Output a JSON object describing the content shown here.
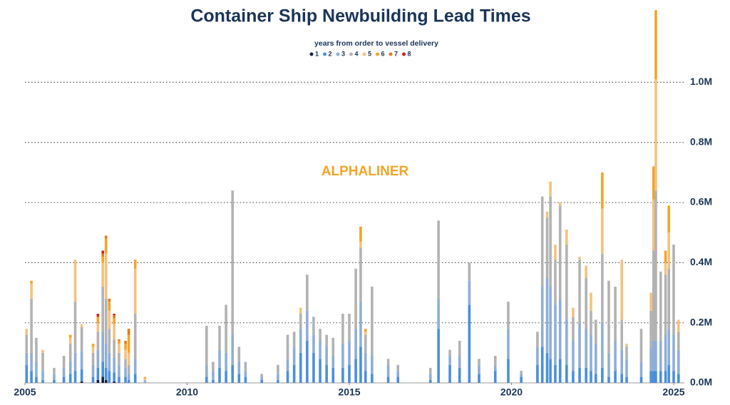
{
  "chart_data": {
    "type": "stacked-bar",
    "title": "Container Ship Newbuilding Lead Times",
    "subtitle": "years from order to vessel delivery",
    "watermark": "ALPHALINER",
    "x": [
      2005.05,
      2005.2,
      2005.35,
      2005.55,
      2005.9,
      2006.2,
      2006.4,
      2006.55,
      2006.75,
      2007.1,
      2007.25,
      2007.4,
      2007.5,
      2007.6,
      2007.75,
      2007.9,
      2008.1,
      2008.2,
      2008.4,
      2008.7,
      2010.6,
      2010.8,
      2011.0,
      2011.2,
      2011.4,
      2011.6,
      2011.8,
      2012.3,
      2012.8,
      2013.1,
      2013.3,
      2013.5,
      2013.7,
      2013.9,
      2014.1,
      2014.3,
      2014.5,
      2014.8,
      2015.0,
      2015.2,
      2015.35,
      2015.5,
      2015.7,
      2016.2,
      2016.5,
      2017.5,
      2017.75,
      2018.1,
      2018.4,
      2018.7,
      2019.0,
      2019.5,
      2019.9,
      2020.3,
      2020.8,
      2020.95,
      2021.1,
      2021.2,
      2021.35,
      2021.5,
      2021.7,
      2021.9,
      2022.1,
      2022.3,
      2022.45,
      2022.6,
      2022.8,
      2023.0,
      2023.2,
      2023.4,
      2023.55,
      2024.0,
      2024.3,
      2024.38,
      2024.45,
      2024.6,
      2024.75,
      2024.85,
      2025.0,
      2025.15
    ],
    "series": [
      {
        "name": "1",
        "color": "#14233f",
        "values": [
          0,
          0,
          0,
          0,
          0,
          0,
          0,
          0,
          5000,
          0,
          10000,
          20000,
          10000,
          0,
          5000,
          0,
          0,
          0,
          0,
          0,
          0,
          0,
          0,
          0,
          0,
          0,
          0,
          0,
          0,
          0,
          0,
          0,
          0,
          0,
          0,
          0,
          0,
          0,
          0,
          0,
          0,
          0,
          0,
          0,
          0,
          0,
          0,
          0,
          0,
          0,
          0,
          0,
          0,
          0,
          0,
          0,
          0,
          0,
          0,
          0,
          0,
          0,
          0,
          0,
          0,
          0,
          0,
          0,
          0,
          0,
          0,
          0,
          0,
          0,
          0,
          0,
          0,
          0,
          0,
          0
        ]
      },
      {
        "name": "2",
        "color": "#4a8fdc",
        "values": [
          60000,
          40000,
          20000,
          10000,
          10000,
          20000,
          30000,
          40000,
          40000,
          20000,
          40000,
          50000,
          40000,
          40000,
          30000,
          20000,
          20000,
          10000,
          30000,
          0,
          20000,
          10000,
          50000,
          40000,
          60000,
          30000,
          20000,
          10000,
          10000,
          40000,
          60000,
          100000,
          140000,
          100000,
          80000,
          60000,
          50000,
          50000,
          60000,
          80000,
          120000,
          40000,
          30000,
          20000,
          20000,
          10000,
          180000,
          60000,
          50000,
          260000,
          30000,
          40000,
          80000,
          20000,
          60000,
          120000,
          100000,
          80000,
          60000,
          80000,
          60000,
          40000,
          50000,
          50000,
          40000,
          30000,
          50000,
          20000,
          40000,
          30000,
          20000,
          20000,
          40000,
          40000,
          40000,
          40000,
          40000,
          60000,
          40000,
          30000
        ]
      },
      {
        "name": "3",
        "color": "#8eaed6",
        "values": [
          40000,
          60000,
          50000,
          30000,
          20000,
          30000,
          40000,
          60000,
          60000,
          40000,
          60000,
          100000,
          80000,
          60000,
          50000,
          40000,
          30000,
          20000,
          50000,
          5000,
          40000,
          30000,
          60000,
          60000,
          100000,
          40000,
          20000,
          10000,
          20000,
          40000,
          60000,
          80000,
          100000,
          60000,
          60000,
          60000,
          40000,
          80000,
          80000,
          100000,
          150000,
          60000,
          60000,
          40000,
          20000,
          20000,
          100000,
          30000,
          40000,
          80000,
          30000,
          20000,
          100000,
          10000,
          60000,
          200000,
          250000,
          240000,
          200000,
          200000,
          150000,
          100000,
          150000,
          130000,
          120000,
          100000,
          150000,
          80000,
          100000,
          80000,
          60000,
          50000,
          80000,
          100000,
          100000,
          100000,
          120000,
          120000,
          120000,
          80000
        ]
      },
      {
        "name": "4",
        "color": "#b2b2b2",
        "values": [
          60000,
          180000,
          80000,
          60000,
          20000,
          40000,
          60000,
          170000,
          80000,
          40000,
          60000,
          150000,
          150000,
          80000,
          60000,
          40000,
          30000,
          30000,
          150000,
          5000,
          130000,
          30000,
          80000,
          160000,
          480000,
          50000,
          30000,
          10000,
          30000,
          80000,
          50000,
          50000,
          120000,
          60000,
          40000,
          40000,
          60000,
          100000,
          90000,
          200000,
          180000,
          60000,
          230000,
          20000,
          20000,
          20000,
          260000,
          20000,
          50000,
          60000,
          20000,
          30000,
          90000,
          10000,
          50000,
          300000,
          200000,
          300000,
          150000,
          310000,
          250000,
          80000,
          210000,
          170000,
          80000,
          80000,
          230000,
          240000,
          180000,
          100000,
          40000,
          110000,
          120000,
          300000,
          500000,
          230000,
          200000,
          200000,
          300000,
          60000
        ]
      },
      {
        "name": "5",
        "color": "#f4c27e",
        "values": [
          20000,
          50000,
          0,
          10000,
          0,
          0,
          20000,
          140000,
          10000,
          20000,
          30000,
          80000,
          150000,
          60000,
          50000,
          30000,
          30000,
          40000,
          150000,
          5000,
          0,
          0,
          0,
          0,
          0,
          0,
          0,
          0,
          0,
          0,
          0,
          20000,
          0,
          0,
          0,
          0,
          0,
          0,
          0,
          0,
          20000,
          10000,
          0,
          0,
          0,
          0,
          0,
          0,
          0,
          0,
          0,
          0,
          0,
          0,
          0,
          0,
          20000,
          50000,
          50000,
          10000,
          50000,
          30000,
          10000,
          40000,
          60000,
          0,
          150000,
          0,
          0,
          200000,
          10000,
          0,
          60000,
          170000,
          370000,
          0,
          40000,
          120000,
          0,
          40000
        ]
      },
      {
        "name": "6",
        "color": "#f5a425",
        "values": [
          0,
          10000,
          0,
          0,
          0,
          0,
          10000,
          0,
          0,
          10000,
          20000,
          20000,
          50000,
          30000,
          20000,
          10000,
          20000,
          60000,
          30000,
          5000,
          0,
          0,
          0,
          0,
          0,
          0,
          0,
          0,
          0,
          0,
          0,
          0,
          0,
          0,
          0,
          0,
          0,
          0,
          0,
          0,
          50000,
          10000,
          0,
          0,
          0,
          0,
          0,
          0,
          0,
          0,
          0,
          0,
          0,
          0,
          0,
          0,
          0,
          0,
          0,
          0,
          0,
          0,
          0,
          0,
          0,
          0,
          120000,
          0,
          0,
          0,
          0,
          0,
          0,
          110000,
          230000,
          0,
          40000,
          90000,
          0,
          0
        ]
      },
      {
        "name": "7",
        "color": "#e47a12",
        "values": [
          0,
          0,
          0,
          0,
          0,
          0,
          0,
          0,
          0,
          0,
          0,
          10000,
          10000,
          10000,
          10000,
          5000,
          10000,
          20000,
          0,
          0,
          0,
          0,
          0,
          0,
          0,
          0,
          0,
          0,
          0,
          0,
          0,
          0,
          0,
          0,
          0,
          0,
          0,
          0,
          0,
          0,
          0,
          0,
          0,
          0,
          0,
          0,
          0,
          0,
          0,
          0,
          0,
          0,
          0,
          0,
          0,
          0,
          0,
          0,
          0,
          0,
          0,
          0,
          0,
          0,
          0,
          0,
          0,
          0,
          0,
          0,
          0,
          0,
          0,
          0,
          0,
          0,
          0,
          0,
          0,
          0
        ]
      },
      {
        "name": "8",
        "color": "#d41f1f",
        "values": [
          0,
          0,
          0,
          0,
          0,
          0,
          0,
          0,
          0,
          0,
          10000,
          10000,
          0,
          0,
          5000,
          0,
          0,
          0,
          0,
          0,
          0,
          0,
          0,
          0,
          0,
          0,
          0,
          0,
          0,
          0,
          0,
          0,
          0,
          0,
          0,
          0,
          0,
          0,
          0,
          0,
          0,
          0,
          0,
          0,
          0,
          0,
          0,
          0,
          0,
          0,
          0,
          0,
          0,
          0,
          0,
          0,
          0,
          0,
          0,
          0,
          0,
          0,
          0,
          0,
          0,
          0,
          0,
          0,
          0,
          0,
          0,
          0,
          0,
          0,
          0,
          0,
          0,
          0,
          0,
          0
        ]
      }
    ],
    "xlim": [
      2005,
      2025.33
    ],
    "xticks": [
      2005,
      2010,
      2015,
      2020,
      2025
    ],
    "ylim": [
      0,
      1250000
    ],
    "yticks": [
      {
        "value": 0,
        "label": "0.0M"
      },
      {
        "value": 200000,
        "label": "0.2M"
      },
      {
        "value": 400000,
        "label": "0.4M"
      },
      {
        "value": 600000,
        "label": "0.6M"
      },
      {
        "value": 800000,
        "label": "0.8M"
      },
      {
        "value": 1000000,
        "label": "1.0M"
      }
    ],
    "grid": true
  }
}
